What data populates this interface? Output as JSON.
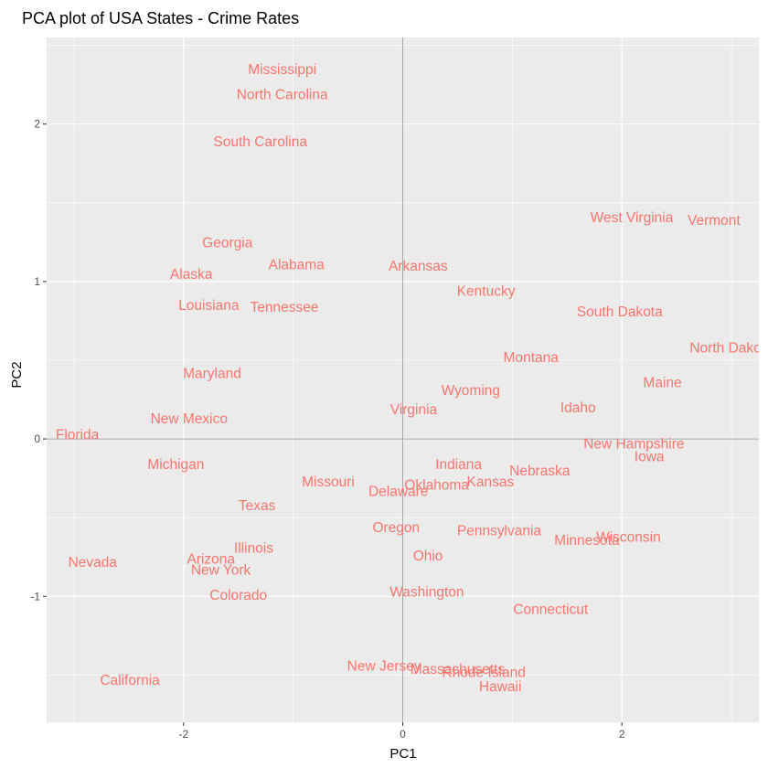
{
  "chart_data": {
    "type": "scatter",
    "title": "PCA plot of USA States - Crime Rates",
    "xlabel": "PC1",
    "ylabel": "PC2",
    "xlim": [
      -3.25,
      3.25
    ],
    "ylim": [
      -1.8,
      2.55
    ],
    "x_ticks": [
      -2,
      0,
      2
    ],
    "y_ticks": [
      -1,
      0,
      1,
      2
    ],
    "x_tick_labels": [
      "-2",
      "0",
      "2"
    ],
    "y_tick_labels": [
      "-1",
      "0",
      "1",
      "2"
    ],
    "reference_lines": {
      "x": 0,
      "y": 0
    },
    "grid": true,
    "panel_color": "#ebebeb",
    "label_color": "#f8766d",
    "points": [
      {
        "label": "Mississippi",
        "x": -1.1,
        "y": 2.35
      },
      {
        "label": "North Carolina",
        "x": -1.1,
        "y": 2.19
      },
      {
        "label": "South Carolina",
        "x": -1.3,
        "y": 1.89
      },
      {
        "label": "Georgia",
        "x": -1.6,
        "y": 1.25
      },
      {
        "label": "Alabama",
        "x": -0.97,
        "y": 1.11
      },
      {
        "label": "Alaska",
        "x": -1.93,
        "y": 1.05
      },
      {
        "label": "Arkansas",
        "x": 0.14,
        "y": 1.1
      },
      {
        "label": "Louisiana",
        "x": -1.77,
        "y": 0.85
      },
      {
        "label": "Tennessee",
        "x": -1.08,
        "y": 0.84
      },
      {
        "label": "Kentucky",
        "x": 0.76,
        "y": 0.94
      },
      {
        "label": "West Virginia",
        "x": 2.09,
        "y": 1.41
      },
      {
        "label": "Vermont",
        "x": 2.84,
        "y": 1.39
      },
      {
        "label": "South Dakota",
        "x": 1.98,
        "y": 0.81
      },
      {
        "label": "North Dakota",
        "x": 3.0,
        "y": 0.58
      },
      {
        "label": "Montana",
        "x": 1.17,
        "y": 0.52
      },
      {
        "label": "Maryland",
        "x": -1.74,
        "y": 0.42
      },
      {
        "label": "Maine",
        "x": 2.37,
        "y": 0.36
      },
      {
        "label": "Wyoming",
        "x": 0.62,
        "y": 0.31
      },
      {
        "label": "Virginia",
        "x": 0.1,
        "y": 0.19
      },
      {
        "label": "Idaho",
        "x": 1.6,
        "y": 0.2
      },
      {
        "label": "New Mexico",
        "x": -1.95,
        "y": 0.13
      },
      {
        "label": "Florida",
        "x": -2.97,
        "y": 0.03
      },
      {
        "label": "New Hampshire",
        "x": 2.11,
        "y": -0.03
      },
      {
        "label": "Iowa",
        "x": 2.25,
        "y": -0.11
      },
      {
        "label": "Michigan",
        "x": -2.07,
        "y": -0.16
      },
      {
        "label": "Indiana",
        "x": 0.51,
        "y": -0.16
      },
      {
        "label": "Nebraska",
        "x": 1.25,
        "y": -0.2
      },
      {
        "label": "Missouri",
        "x": -0.68,
        "y": -0.27
      },
      {
        "label": "Oklahoma",
        "x": 0.31,
        "y": -0.29
      },
      {
        "label": "Kansas",
        "x": 0.8,
        "y": -0.27
      },
      {
        "label": "Delaware",
        "x": -0.04,
        "y": -0.33
      },
      {
        "label": "Texas",
        "x": -1.33,
        "y": -0.42
      },
      {
        "label": "Oregon",
        "x": -0.06,
        "y": -0.56
      },
      {
        "label": "Pennsylvania",
        "x": 0.88,
        "y": -0.58
      },
      {
        "label": "Wisconsin",
        "x": 2.06,
        "y": -0.62
      },
      {
        "label": "Minnesota",
        "x": 1.68,
        "y": -0.64
      },
      {
        "label": "Illinois",
        "x": -1.36,
        "y": -0.69
      },
      {
        "label": "Nevada",
        "x": -2.83,
        "y": -0.78
      },
      {
        "label": "Arizona",
        "x": -1.75,
        "y": -0.76
      },
      {
        "label": "Ohio",
        "x": 0.23,
        "y": -0.74
      },
      {
        "label": "New York",
        "x": -1.66,
        "y": -0.83
      },
      {
        "label": "Colorado",
        "x": -1.5,
        "y": -0.99
      },
      {
        "label": "Washington",
        "x": 0.22,
        "y": -0.97
      },
      {
        "label": "Connecticut",
        "x": 1.35,
        "y": -1.08
      },
      {
        "label": "New Jersey",
        "x": -0.17,
        "y": -1.44
      },
      {
        "label": "Massachusetts",
        "x": 0.5,
        "y": -1.46
      },
      {
        "label": "Rhode Island",
        "x": 0.74,
        "y": -1.48
      },
      {
        "label": "Hawaii",
        "x": 0.89,
        "y": -1.57
      },
      {
        "label": "California",
        "x": -2.49,
        "y": -1.53
      }
    ]
  }
}
